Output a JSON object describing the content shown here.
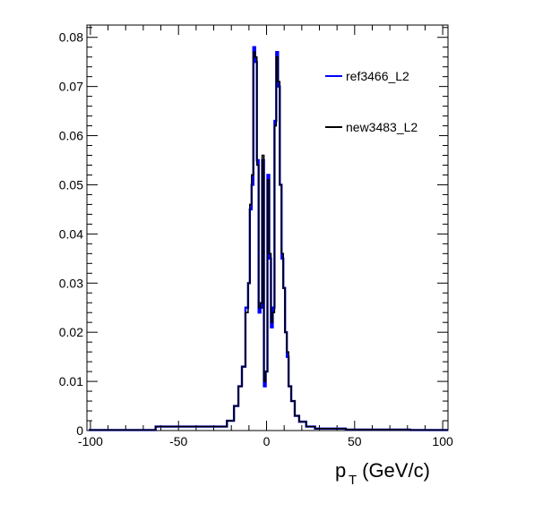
{
  "chart_data": {
    "type": "line",
    "xlabel_main": "p",
    "xlabel_sub": "T",
    "xlabel_rest": " (GeV/c)",
    "xlim": [
      -102,
      103
    ],
    "ylim": [
      0,
      0.0825
    ],
    "xticks": [
      -100,
      -50,
      0,
      50,
      100
    ],
    "xtick_labels": [
      "-100",
      "-50",
      "0",
      "50",
      "100"
    ],
    "yticks": [
      0,
      0.01,
      0.02,
      0.03,
      0.04,
      0.05,
      0.06,
      0.07,
      0.08
    ],
    "ytick_labels": [
      "0",
      "0.01",
      "0.02",
      "0.03",
      "0.04",
      "0.05",
      "0.06",
      "0.07",
      "0.08"
    ],
    "legend_position": "top-right",
    "series": [
      {
        "name": "ref3466_L2",
        "color": "#0000ff",
        "x": [
          -101,
          -25,
          -20,
          -17,
          -15,
          -13,
          -11,
          -10,
          -9,
          -8,
          -7,
          -6,
          -5,
          -4,
          -3,
          -2,
          -1,
          0,
          1,
          2,
          3,
          4,
          5,
          6,
          7,
          8,
          9,
          10,
          11,
          12,
          13,
          15,
          17,
          20,
          25,
          30,
          60,
          103
        ],
        "y": [
          0.0001,
          0.0008,
          0.002,
          0.005,
          0.009,
          0.013,
          0.025,
          0.03,
          0.045,
          0.05,
          0.078,
          0.075,
          0.055,
          0.024,
          0.025,
          0.055,
          0.009,
          0.012,
          0.052,
          0.035,
          0.021,
          0.025,
          0.063,
          0.077,
          0.07,
          0.05,
          0.035,
          0.029,
          0.02,
          0.015,
          0.009,
          0.006,
          0.003,
          0.0018,
          0.0008,
          0.0004,
          0.0002,
          0.0001
        ]
      },
      {
        "name": "new3483_L2",
        "color": "#000000",
        "x": [
          -101,
          -25,
          -20,
          -17,
          -15,
          -13,
          -11,
          -10,
          -9,
          -8,
          -7,
          -6,
          -5,
          -4,
          -3,
          -2,
          -1,
          0,
          1,
          2,
          3,
          4,
          5,
          6,
          7,
          8,
          9,
          10,
          11,
          12,
          13,
          15,
          17,
          20,
          25,
          30,
          60,
          103
        ],
        "y": [
          0.0001,
          0.0008,
          0.002,
          0.005,
          0.009,
          0.013,
          0.024,
          0.03,
          0.046,
          0.052,
          0.077,
          0.076,
          0.054,
          0.025,
          0.026,
          0.056,
          0.01,
          0.012,
          0.051,
          0.036,
          0.022,
          0.024,
          0.062,
          0.076,
          0.071,
          0.05,
          0.036,
          0.029,
          0.02,
          0.016,
          0.009,
          0.006,
          0.003,
          0.0018,
          0.0008,
          0.0004,
          0.0002,
          0.0001
        ]
      }
    ]
  }
}
